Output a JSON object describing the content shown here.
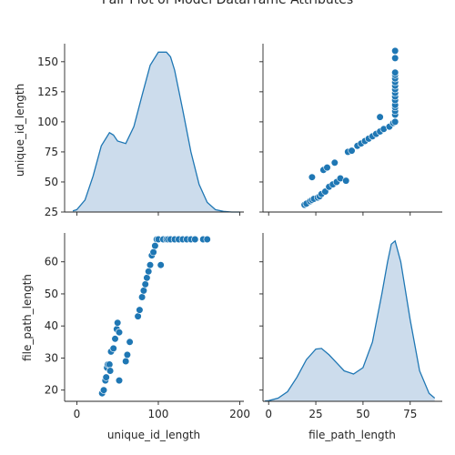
{
  "colors": {
    "point": "#1f77b4",
    "point_edge": "#ffffff",
    "kde_fill": "#c6d8ea",
    "kde_line": "#1f77b4",
    "axis": "#262626"
  },
  "chart_data": {
    "type": "scatter",
    "title": "Pair Plot of Model DataFrame Attributes",
    "grid": false,
    "legend": "none",
    "variables": [
      "unique_id_length",
      "file_path_length"
    ],
    "ranges": {
      "unique_id_length": [
        -15,
        205
      ],
      "file_path_length": [
        -3,
        92
      ]
    },
    "diag_y_ranges": {
      "unique_id_length": [
        25,
        165
      ],
      "file_path_length": [
        16.5,
        69
      ]
    },
    "ticks": {
      "unique_id_length": [
        0,
        100,
        200
      ],
      "unique_id_length_y": [
        25,
        50,
        75,
        100,
        125,
        150
      ],
      "file_path_length": [
        0,
        25,
        50,
        75
      ],
      "file_path_length_y": [
        20,
        30,
        40,
        50,
        60
      ]
    },
    "panels": [
      {
        "type": "kde",
        "row": 0,
        "col": 0,
        "variable": "unique_id_length",
        "x": [
          -5,
          0,
          10,
          20,
          30,
          40,
          45,
          50,
          60,
          70,
          80,
          90,
          100,
          110,
          115,
          120,
          130,
          140,
          150,
          160,
          170,
          180,
          190,
          200
        ],
        "density": [
          26,
          27,
          35,
          55,
          80,
          91,
          89,
          84,
          82,
          96,
          122,
          147,
          158,
          158,
          154,
          143,
          110,
          75,
          48,
          33,
          27,
          25.5,
          25,
          25
        ]
      },
      {
        "type": "scatter",
        "row": 0,
        "col": 1,
        "x_variable": "file_path_length",
        "y_variable": "unique_id_length",
        "points": [
          [
            19,
            31
          ],
          [
            20,
            32
          ],
          [
            22,
            34
          ],
          [
            23,
            35
          ],
          [
            24,
            36
          ],
          [
            26,
            37
          ],
          [
            27,
            38
          ],
          [
            28,
            40
          ],
          [
            30,
            42
          ],
          [
            32,
            46
          ],
          [
            34,
            48
          ],
          [
            36,
            50
          ],
          [
            38,
            53
          ],
          [
            41,
            51
          ],
          [
            23,
            54
          ],
          [
            29,
            60
          ],
          [
            31,
            62
          ],
          [
            35,
            66
          ],
          [
            42,
            75
          ],
          [
            44,
            76
          ],
          [
            47,
            80
          ],
          [
            49,
            82
          ],
          [
            51,
            84
          ],
          [
            53,
            86
          ],
          [
            55,
            88
          ],
          [
            57,
            90
          ],
          [
            59,
            92
          ],
          [
            61,
            94
          ],
          [
            64,
            96
          ],
          [
            66,
            99
          ],
          [
            59,
            104
          ],
          [
            67,
            100
          ],
          [
            67,
            106
          ],
          [
            67,
            109
          ],
          [
            67,
            112
          ],
          [
            67,
            114
          ],
          [
            67,
            118
          ],
          [
            67,
            121
          ],
          [
            67,
            124
          ],
          [
            67,
            127
          ],
          [
            67,
            130
          ],
          [
            67,
            133
          ],
          [
            67,
            136
          ],
          [
            67,
            139
          ],
          [
            67,
            141
          ],
          [
            67,
            153
          ],
          [
            67,
            159
          ]
        ]
      },
      {
        "type": "scatter",
        "row": 1,
        "col": 0,
        "x_variable": "unique_id_length",
        "y_variable": "file_path_length",
        "points": [
          [
            31,
            19
          ],
          [
            33,
            20
          ],
          [
            35,
            23
          ],
          [
            36,
            24
          ],
          [
            37,
            27
          ],
          [
            38,
            28
          ],
          [
            40,
            28
          ],
          [
            41,
            26
          ],
          [
            42,
            32
          ],
          [
            45,
            33
          ],
          [
            47,
            36
          ],
          [
            49,
            39
          ],
          [
            50,
            41
          ],
          [
            52,
            38
          ],
          [
            52,
            23
          ],
          [
            60,
            29
          ],
          [
            62,
            31
          ],
          [
            65,
            35
          ],
          [
            75,
            43
          ],
          [
            77,
            45
          ],
          [
            80,
            49
          ],
          [
            82,
            51
          ],
          [
            84,
            53
          ],
          [
            86,
            55
          ],
          [
            88,
            57
          ],
          [
            90,
            59
          ],
          [
            92,
            62
          ],
          [
            94,
            63
          ],
          [
            96,
            65
          ],
          [
            98,
            67
          ],
          [
            103,
            59
          ],
          [
            100,
            67
          ],
          [
            106,
            67
          ],
          [
            110,
            67
          ],
          [
            112,
            67
          ],
          [
            115,
            67
          ],
          [
            120,
            67
          ],
          [
            125,
            67
          ],
          [
            130,
            67
          ],
          [
            135,
            67
          ],
          [
            140,
            67
          ],
          [
            145,
            67
          ],
          [
            155,
            67
          ],
          [
            160,
            67
          ]
        ]
      },
      {
        "type": "kde",
        "row": 1,
        "col": 1,
        "variable": "file_path_length",
        "x": [
          -2,
          0,
          5,
          10,
          15,
          20,
          25,
          28,
          32,
          36,
          40,
          45,
          50,
          55,
          60,
          63,
          65,
          67,
          70,
          75,
          80,
          85,
          88
        ],
        "density": [
          16.6,
          16.7,
          17.5,
          19.5,
          24,
          29.5,
          32.8,
          33,
          31,
          28.5,
          26,
          25,
          27,
          35,
          50,
          60,
          65.5,
          66.5,
          60,
          42,
          26,
          19,
          17.5
        ]
      }
    ],
    "tick_labels": {
      "bottom_left": [
        "0",
        "100",
        "200"
      ],
      "bottom_right": [
        "0",
        "25",
        "50",
        "75"
      ],
      "left_top": [
        "25",
        "50",
        "75",
        "100",
        "125",
        "150"
      ],
      "left_bottom": [
        "20",
        "30",
        "40",
        "50",
        "60"
      ]
    },
    "axis_labels": {
      "top_left_y": "unique_id_length",
      "bottom_left_y": "file_path_length",
      "bottom_left_x": "unique_id_length",
      "bottom_right_x": "file_path_length"
    }
  }
}
